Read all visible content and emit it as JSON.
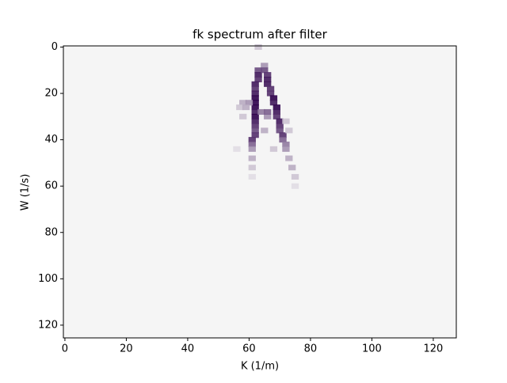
{
  "chart_data": {
    "type": "heatmap",
    "title": "fk spectrum after filter",
    "xlabel": "K (1/m)",
    "ylabel": "W (1/s)",
    "xlim": [
      -0.5,
      127.5
    ],
    "ylim": [
      125.5,
      -0.5
    ],
    "xticks": [
      0,
      20,
      40,
      60,
      80,
      100,
      120
    ],
    "yticks": [
      0,
      20,
      40,
      60,
      80,
      100,
      120
    ],
    "colormap": [
      "#f5f5f5",
      "#2d004b"
    ],
    "x": [
      63,
      63,
      63,
      63,
      62,
      62,
      62,
      62,
      62,
      62,
      62,
      62,
      62,
      62,
      62,
      62,
      61,
      61,
      61,
      61,
      61,
      61,
      65,
      65,
      66,
      66,
      66,
      67,
      67,
      68,
      68,
      69,
      69,
      69,
      70,
      70,
      70,
      71,
      71,
      72,
      72,
      73,
      74,
      75,
      75,
      58,
      60,
      57,
      59,
      58,
      66,
      64,
      66,
      72,
      73,
      65,
      56,
      68
    ],
    "y": [
      0,
      10,
      12,
      14,
      16,
      18,
      20,
      22,
      24,
      26,
      28,
      30,
      32,
      34,
      36,
      38,
      40,
      42,
      44,
      48,
      52,
      56,
      8,
      10,
      12,
      14,
      16,
      18,
      20,
      22,
      24,
      26,
      28,
      30,
      32,
      34,
      36,
      38,
      40,
      42,
      44,
      48,
      52,
      56,
      60,
      24,
      24,
      26,
      26,
      30,
      30,
      28,
      28,
      32,
      36,
      36,
      44,
      44
    ],
    "values": [
      0.2,
      0.7,
      0.9,
      0.8,
      0.9,
      0.8,
      0.9,
      1,
      1,
      1,
      0.9,
      1,
      0.9,
      0.8,
      0.7,
      0.8,
      0.8,
      0.6,
      0.4,
      0.3,
      0.2,
      0.1,
      0.4,
      0.7,
      0.8,
      0.9,
      0.9,
      0.8,
      0.8,
      1,
      0.9,
      1,
      0.9,
      0.8,
      0.9,
      0.8,
      0.7,
      0.8,
      0.6,
      0.5,
      0.4,
      0.3,
      0.3,
      0.2,
      0.1,
      0.3,
      0.4,
      0.2,
      0.3,
      0.2,
      0.4,
      0.5,
      0.6,
      0.2,
      0.2,
      0.3,
      0.1,
      0.2
    ]
  }
}
